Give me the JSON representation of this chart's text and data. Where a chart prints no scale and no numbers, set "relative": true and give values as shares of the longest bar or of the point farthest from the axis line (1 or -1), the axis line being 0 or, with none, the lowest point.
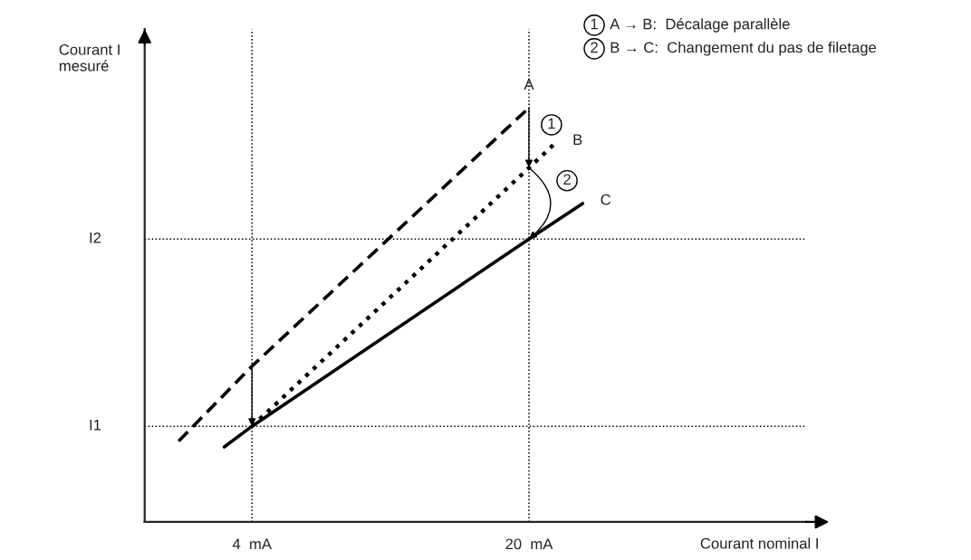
{
  "chart_data": {
    "type": "line",
    "xlabel": "Courant nominal I",
    "ylabel": "Courant I\nmesuré",
    "series": [
      {
        "name": "A",
        "color": "#000000",
        "line_style": "dashed",
        "x": [
          -0.24,
          4,
          20
        ],
        "values": [
          0.195,
          0.376,
          1
        ]
      },
      {
        "name": "B",
        "color": "#000000",
        "line_style": "dotted",
        "x": [
          4,
          20,
          21.5
        ],
        "values": [
          0.231,
          0.855,
          0.914
        ]
      },
      {
        "name": "C",
        "color": "#000000",
        "line_style": "solid",
        "x": [
          2.4,
          4,
          20,
          23.1
        ],
        "values": [
          0.181,
          0.231,
          0.683,
          0.769
        ]
      }
    ],
    "relative": true,
    "xlim": [
      -2.2,
      36
    ],
    "xticks": [
      {
        "value": 4,
        "label": "4  mA"
      },
      {
        "value": 20,
        "label": "20  mA"
      }
    ],
    "ref_lines": [
      {
        "axis": "y",
        "value": 0.231,
        "label": "I1",
        "line_style": "dotted",
        "color": "#000000"
      },
      {
        "axis": "y",
        "value": 0.683,
        "label": "I2",
        "line_style": "dotted",
        "color": "#000000"
      },
      {
        "axis": "x",
        "value": 4,
        "line_style": "dotted",
        "color": "#000000"
      },
      {
        "axis": "x",
        "value": 20,
        "line_style": "dotted",
        "color": "#000000"
      }
    ],
    "annotations": [
      {
        "text": "1",
        "x": 21.3,
        "y": 0.959
      },
      {
        "text": "2",
        "x": 22.2,
        "y": 0.824
      },
      "1",
      "A → B:  Décalage parallèle",
      "2",
      "B → C:  Changement du pas de filetage"
    ],
    "marker": "none",
    "grid": false,
    "legend": false
  }
}
